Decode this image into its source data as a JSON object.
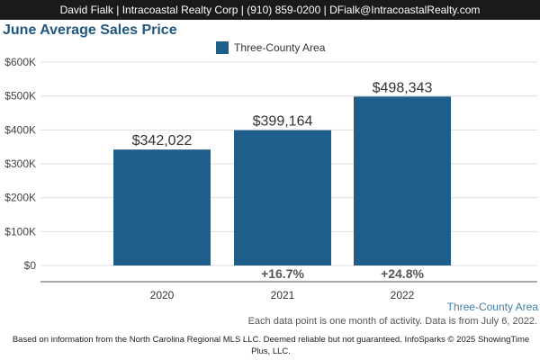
{
  "header": {
    "agent_line": "David Fialk | Intracoastal Realty Corp | (910) 859-0200 | DFialk@IntracoastalRealty.com"
  },
  "chart_data": {
    "type": "bar",
    "title": "June Average Sales Price",
    "categories": [
      "2020",
      "2021",
      "2022"
    ],
    "series": [
      {
        "name": "Three-County Area",
        "values": [
          342022,
          399164,
          498343
        ]
      }
    ],
    "data_labels": [
      "$342,022",
      "$399,164",
      "$498,343"
    ],
    "change_labels": [
      "",
      "+16.7%",
      "+24.8%"
    ],
    "y_ticks": [
      0,
      100000,
      200000,
      300000,
      400000,
      500000,
      600000
    ],
    "y_tick_labels": [
      "$0",
      "$100K",
      "$200K",
      "$300K",
      "$400K",
      "$500K",
      "$600K"
    ],
    "ylim": [
      0,
      600000
    ],
    "grid": true,
    "legend_position": "top-center",
    "bar_color": "#1d5f8a"
  },
  "series_label": "Three-County Area",
  "note": "Each data point is one month of activity. Data is from July 6, 2022.",
  "footer": "Based on information from the North Carolina Regional MLS LLC. Deemed reliable but not guaranteed. InfoSparks © 2025 ShowingTime Plus, LLC."
}
